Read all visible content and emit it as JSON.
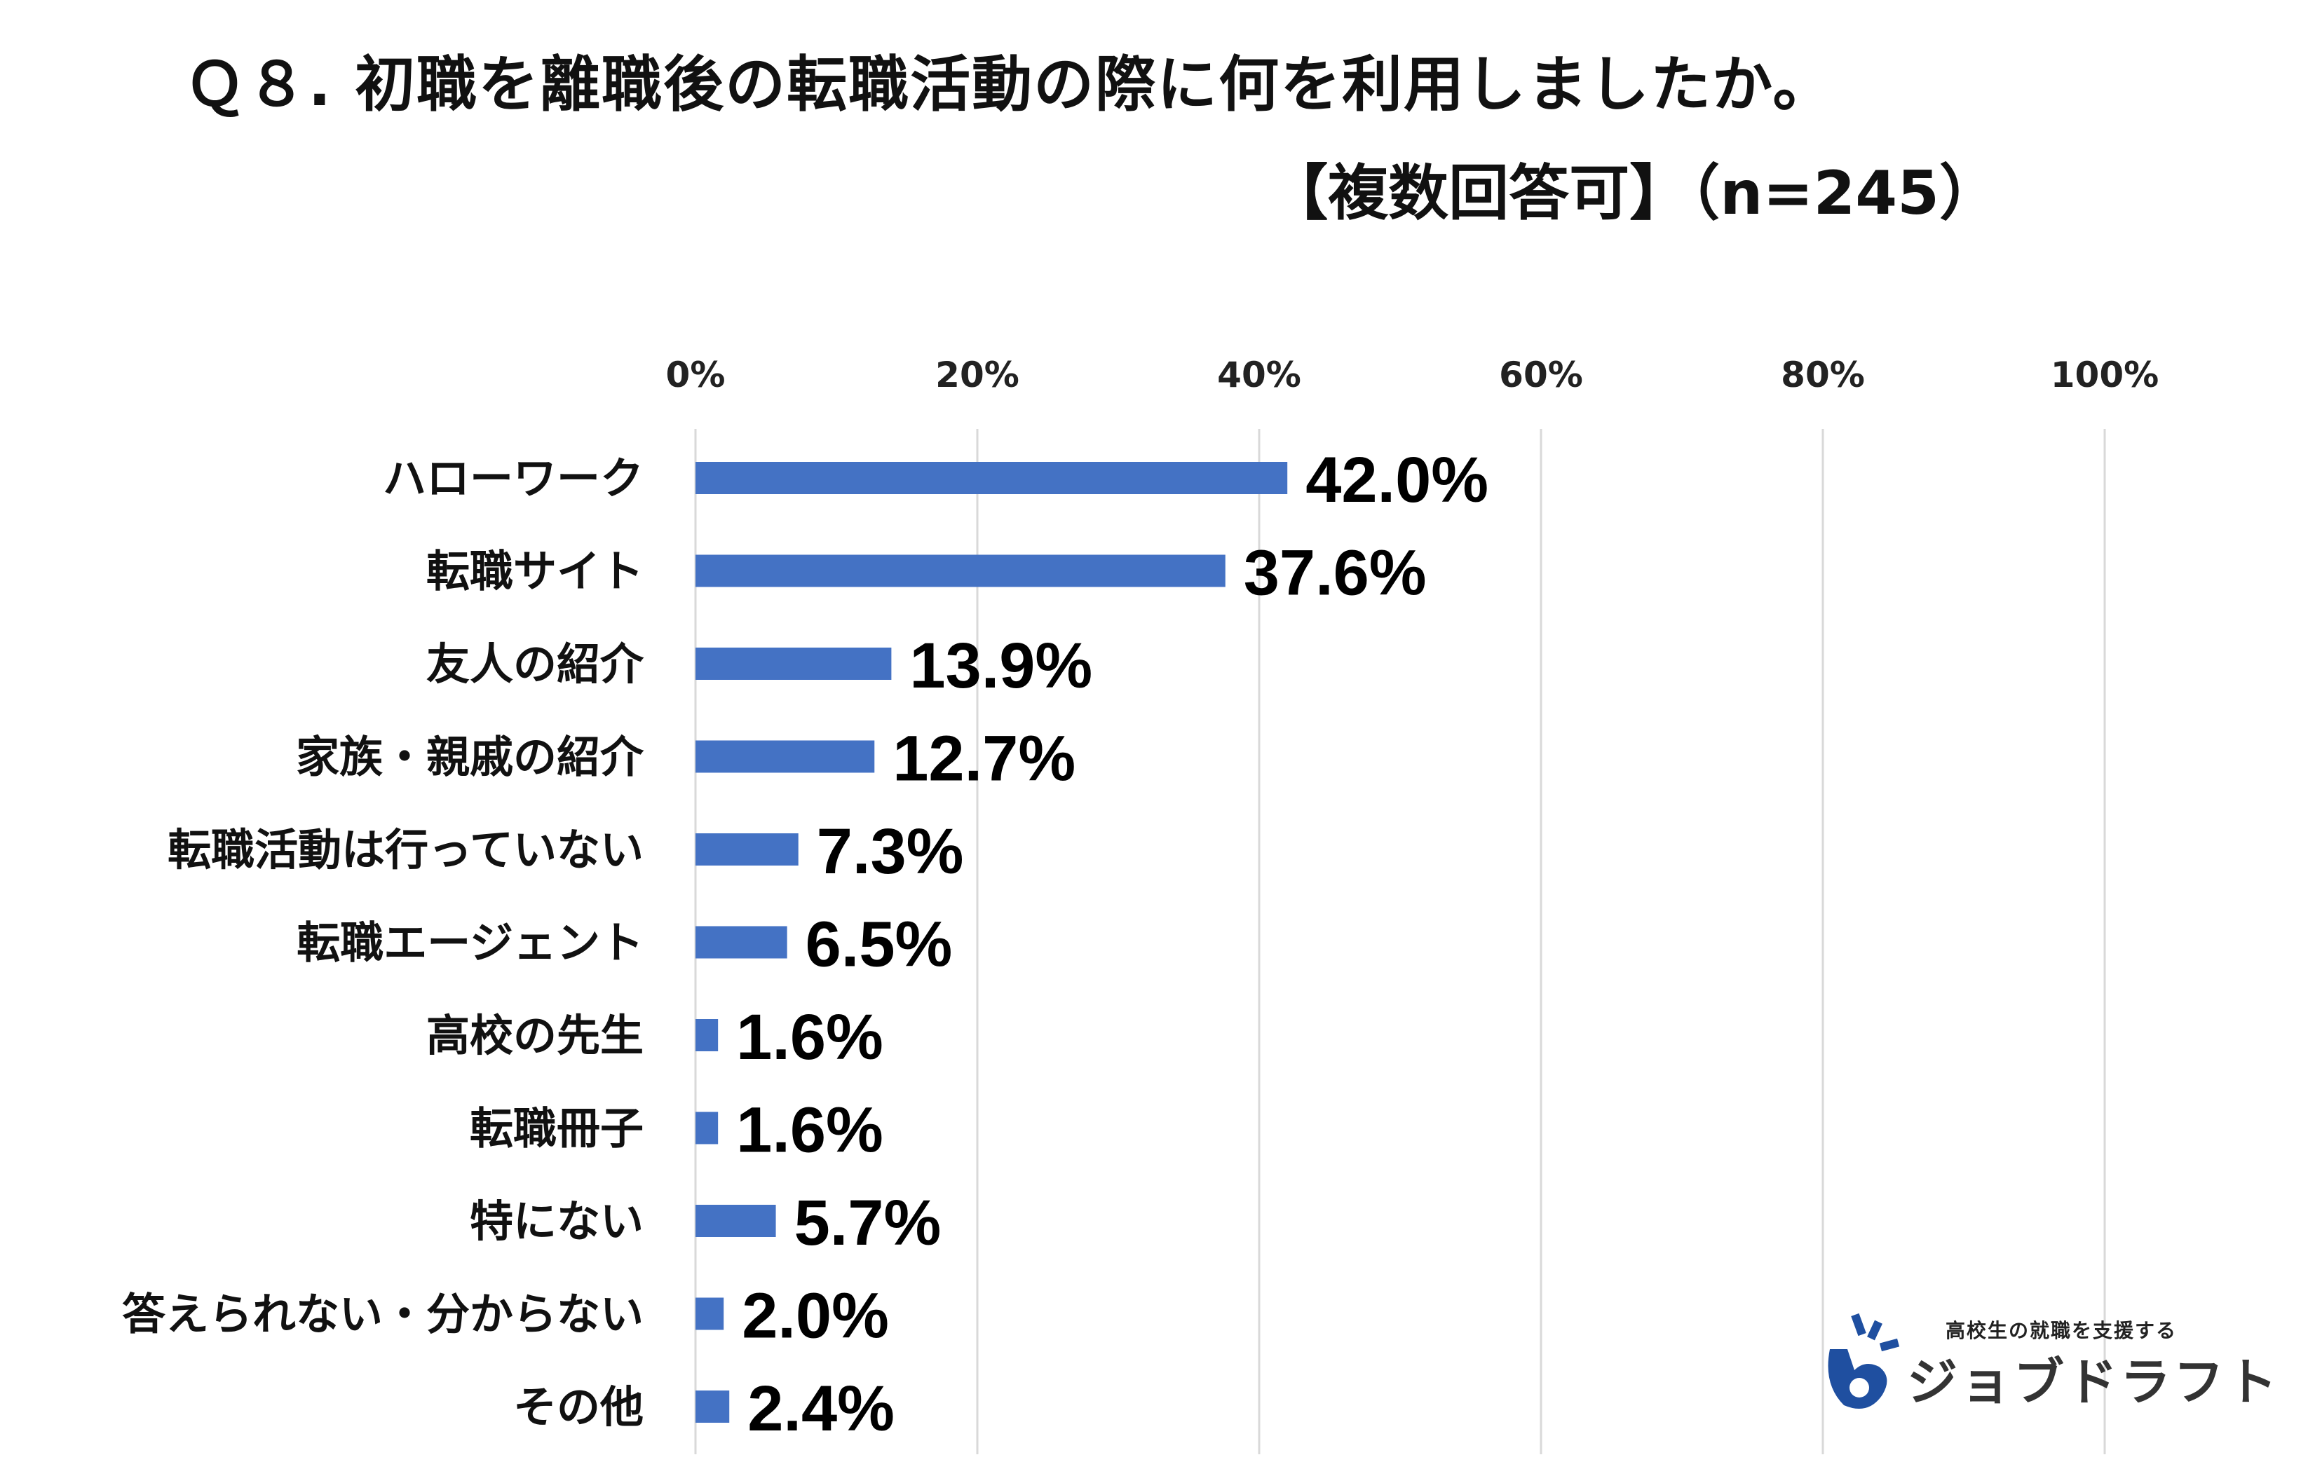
{
  "chart_data": {
    "type": "bar",
    "orientation": "horizontal",
    "title": "Ｑ８. 初職を離職後の転職活動の際に何を利用しましたか。",
    "subtitle": "【複数回答可】（n=245）",
    "xlabel": "",
    "ylabel": "",
    "xlim": [
      0,
      100
    ],
    "x_ticks": [
      "0%",
      "20%",
      "40%",
      "60%",
      "80%",
      "100%"
    ],
    "grid": true,
    "bar_color": "#4472C4",
    "categories": [
      "ハローワーク",
      "転職サイト",
      "友人の紹介",
      "家族・親戚の紹介",
      "転職活動は行っていない",
      "転職エージェント",
      "高校の先生",
      "転職冊子",
      "特にない",
      "答えられない・分からない",
      "その他"
    ],
    "values": [
      42.0,
      37.6,
      13.9,
      12.7,
      7.3,
      6.5,
      1.6,
      1.6,
      5.7,
      2.0,
      2.4
    ],
    "data_labels": [
      "42.0%",
      "37.6%",
      "13.9%",
      "12.7%",
      "7.3%",
      "6.5%",
      "1.6%",
      "1.6%",
      "5.7%",
      "2.0%",
      "2.4%"
    ]
  },
  "logo": {
    "tagline": "高校生の就職を支援する",
    "name": "ジョブドラフト",
    "accent_color": "#1f4fa0"
  }
}
